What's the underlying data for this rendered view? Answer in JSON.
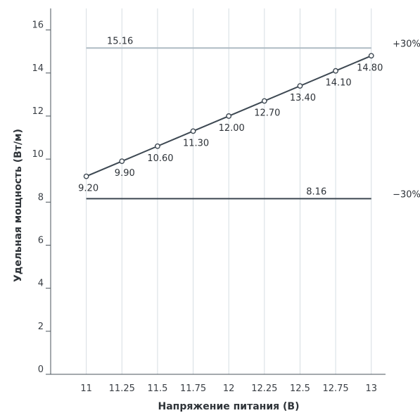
{
  "chart_data": {
    "type": "line",
    "title": "",
    "xlabel": "Напряжение питания (В)",
    "ylabel": "Удельная мощность (Вт/м)",
    "x": [
      11,
      11.25,
      11.5,
      11.75,
      12,
      12.25,
      12.5,
      12.75,
      13
    ],
    "x_tick_labels": [
      "11",
      "11.25",
      "11.5",
      "11.75",
      "12",
      "12.25",
      "12.5",
      "12.75",
      "13"
    ],
    "y_ticks": [
      0,
      2,
      4,
      6,
      8,
      10,
      12,
      14,
      16
    ],
    "xlim": [
      10.75,
      13.1
    ],
    "ylim": [
      0,
      17
    ],
    "grid": "vertical",
    "series": [
      {
        "values": [
          9.2,
          9.9,
          10.6,
          11.3,
          12.0,
          12.7,
          13.4,
          14.1,
          14.8
        ],
        "labels": [
          "9.20",
          "9.90",
          "10.60",
          "11.30",
          "12.00",
          "12.70",
          "13.40",
          "14.10",
          "14.80"
        ],
        "color": "#3d4852",
        "marker": "hollow-circle"
      }
    ],
    "reference_lines": [
      {
        "value": 15.16,
        "label": "15.16",
        "side_label": "+30%",
        "color": "#aebbc4"
      },
      {
        "value": 8.16,
        "label": "8.16",
        "side_label": "−30%",
        "color": "#3d4852"
      }
    ]
  }
}
